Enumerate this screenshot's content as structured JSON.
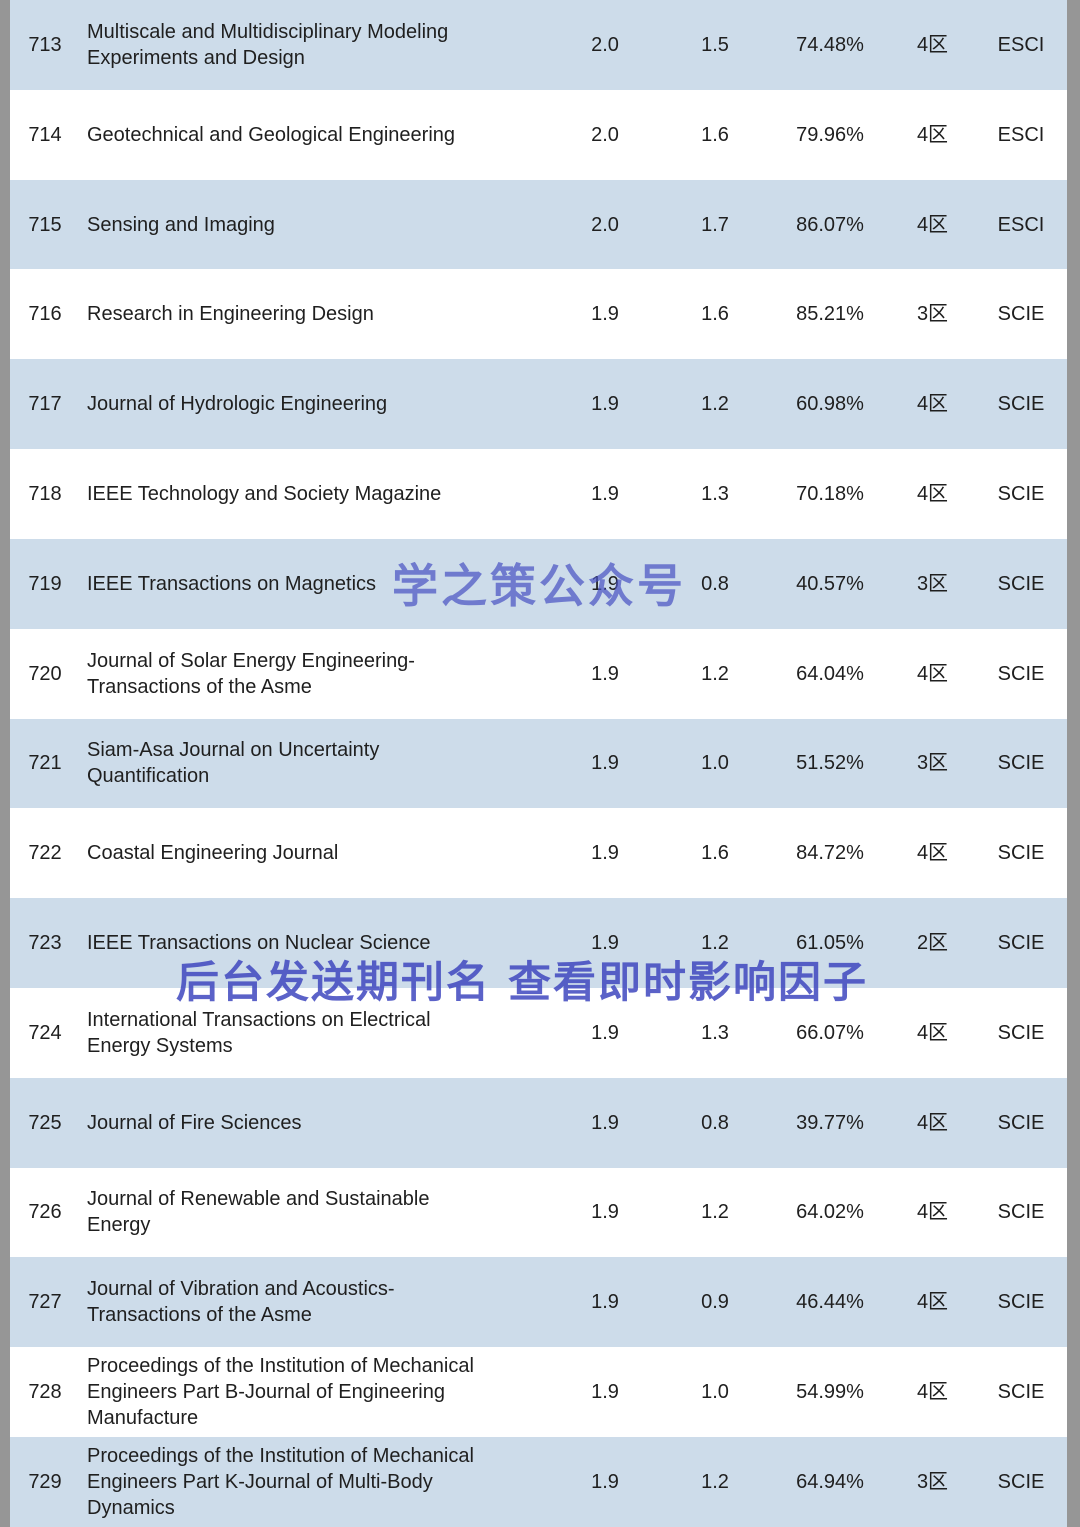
{
  "watermarks": {
    "center": "学之策公众号",
    "lower": "后台发送期刊名 查看即时影响因子"
  },
  "colors": {
    "row_alt": "#cddcea",
    "row_plain": "#ffffff",
    "watermark_blue": "#4a52c2",
    "edge_gray": "#969696",
    "text": "#1f1f1f"
  },
  "table": {
    "rows": [
      {
        "rank": "713",
        "name": "Multiscale and Multidisciplinary Modeling Experiments and Design",
        "if": "2.0",
        "if5": "1.5",
        "percentile": "74.48%",
        "zone": "4区",
        "index": "ESCI"
      },
      {
        "rank": "714",
        "name": "Geotechnical and Geological Engineering",
        "if": "2.0",
        "if5": "1.6",
        "percentile": "79.96%",
        "zone": "4区",
        "index": "ESCI"
      },
      {
        "rank": "715",
        "name": "Sensing and Imaging",
        "if": "2.0",
        "if5": "1.7",
        "percentile": "86.07%",
        "zone": "4区",
        "index": "ESCI"
      },
      {
        "rank": "716",
        "name": "Research in Engineering Design",
        "if": "1.9",
        "if5": "1.6",
        "percentile": "85.21%",
        "zone": "3区",
        "index": "SCIE"
      },
      {
        "rank": "717",
        "name": "Journal of Hydrologic Engineering",
        "if": "1.9",
        "if5": "1.2",
        "percentile": "60.98%",
        "zone": "4区",
        "index": "SCIE"
      },
      {
        "rank": "718",
        "name": "IEEE Technology and Society Magazine",
        "if": "1.9",
        "if5": "1.3",
        "percentile": "70.18%",
        "zone": "4区",
        "index": "SCIE"
      },
      {
        "rank": "719",
        "name": "IEEE Transactions on Magnetics",
        "if": "1.9",
        "if5": "0.8",
        "percentile": "40.57%",
        "zone": "3区",
        "index": "SCIE"
      },
      {
        "rank": "720",
        "name": "Journal of Solar Energy Engineering-Transactions of the Asme",
        "if": "1.9",
        "if5": "1.2",
        "percentile": "64.04%",
        "zone": "4区",
        "index": "SCIE"
      },
      {
        "rank": "721",
        "name": "Siam-Asa Journal on Uncertainty Quantification",
        "if": "1.9",
        "if5": "1.0",
        "percentile": "51.52%",
        "zone": "3区",
        "index": "SCIE"
      },
      {
        "rank": "722",
        "name": "Coastal Engineering Journal",
        "if": "1.9",
        "if5": "1.6",
        "percentile": "84.72%",
        "zone": "4区",
        "index": "SCIE"
      },
      {
        "rank": "723",
        "name": "IEEE Transactions on Nuclear Science",
        "if": "1.9",
        "if5": "1.2",
        "percentile": "61.05%",
        "zone": "2区",
        "index": "SCIE"
      },
      {
        "rank": "724",
        "name": "International Transactions on Electrical Energy Systems",
        "if": "1.9",
        "if5": "1.3",
        "percentile": "66.07%",
        "zone": "4区",
        "index": "SCIE"
      },
      {
        "rank": "725",
        "name": "Journal of Fire Sciences",
        "if": "1.9",
        "if5": "0.8",
        "percentile": "39.77%",
        "zone": "4区",
        "index": "SCIE"
      },
      {
        "rank": "726",
        "name": "Journal of Renewable and Sustainable Energy",
        "if": "1.9",
        "if5": "1.2",
        "percentile": "64.02%",
        "zone": "4区",
        "index": "SCIE"
      },
      {
        "rank": "727",
        "name": "Journal of Vibration and Acoustics-Transactions of the Asme",
        "if": "1.9",
        "if5": "0.9",
        "percentile": "46.44%",
        "zone": "4区",
        "index": "SCIE"
      },
      {
        "rank": "728",
        "name": "Proceedings of the Institution of Mechanical Engineers Part B-Journal of Engineering Manufacture",
        "if": "1.9",
        "if5": "1.0",
        "percentile": "54.99%",
        "zone": "4区",
        "index": "SCIE"
      },
      {
        "rank": "729",
        "name": "Proceedings of the Institution of Mechanical Engineers Part K-Journal of Multi-Body Dynamics",
        "if": "1.9",
        "if5": "1.2",
        "percentile": "64.94%",
        "zone": "3区",
        "index": "SCIE"
      }
    ]
  }
}
